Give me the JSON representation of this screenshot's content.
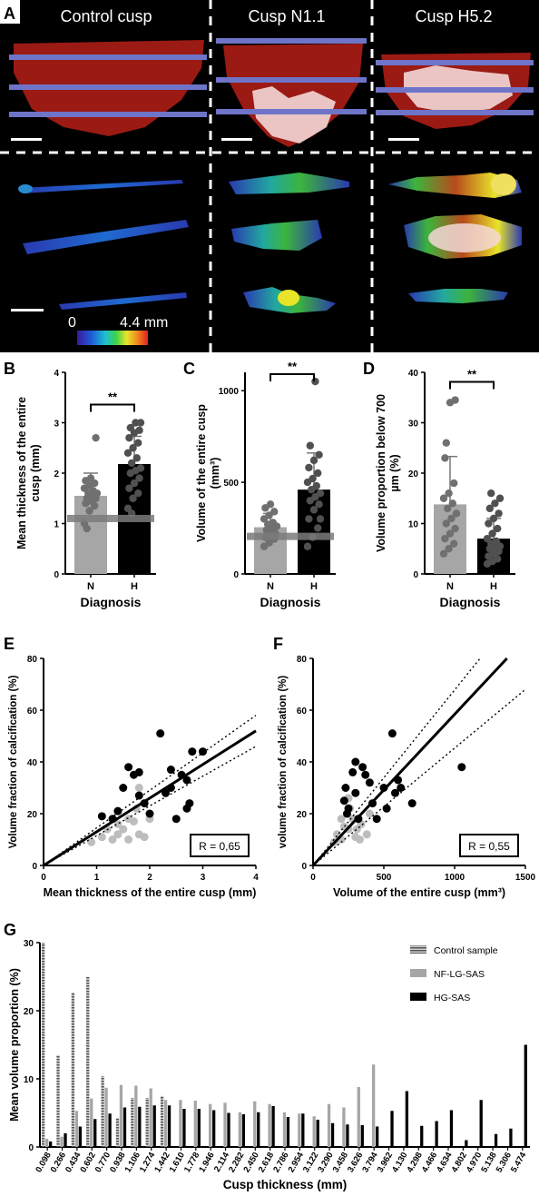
{
  "panelA": {
    "letter": "A",
    "titles": [
      "Control cusp",
      "Cusp N1.1",
      "Cusp H5.2"
    ],
    "colorbar_min": "0",
    "colorbar_max": "4.4 mm"
  },
  "colors": {
    "gray": "#a6a6a6",
    "black": "#000000",
    "tissue": "#9b1a14",
    "calc": "#f3d8d6",
    "band": "#6e74c8"
  },
  "chart_data": [
    {
      "id": "B",
      "type": "bar",
      "letter": "B",
      "categories": [
        "N",
        "H"
      ],
      "values": [
        1.55,
        2.18
      ],
      "errors": [
        0.45,
        0.55
      ],
      "xlabel": "Diagnosis",
      "ylabel": "Mean thickness of the entire cusp (mm)",
      "ylim": [
        0,
        4
      ],
      "yticks": [
        "0",
        "1",
        "2",
        "3",
        "4"
      ],
      "ytick_values": [
        0,
        1,
        2,
        3,
        4
      ],
      "reference_line": 1.1,
      "significance": "**",
      "points": [
        [
          1.0,
          1.25,
          1.35,
          1.4,
          1.45,
          1.5,
          1.5,
          1.55,
          1.6,
          1.6,
          1.65,
          1.7,
          1.75,
          1.8,
          1.85,
          1.9,
          2.7,
          0.9
        ],
        [
          1.3,
          1.5,
          1.6,
          1.7,
          1.8,
          1.9,
          2.0,
          2.05,
          2.1,
          2.2,
          2.3,
          2.4,
          2.5,
          2.6,
          2.7,
          2.8,
          2.85,
          2.9,
          3.0,
          3.0,
          1.2
        ]
      ]
    },
    {
      "id": "C",
      "type": "bar",
      "letter": "C",
      "categories": [
        "N",
        "H"
      ],
      "values": [
        255,
        460
      ],
      "errors": [
        75,
        200
      ],
      "xlabel": "Diagnosis",
      "ylabel": "Volume of the entire cusp (mm³)",
      "ylim": [
        0,
        1100
      ],
      "yticks": [
        "0",
        "500",
        "1000"
      ],
      "ytick_values": [
        0,
        500,
        1000
      ],
      "reference_line": 205,
      "significance": "**",
      "points": [
        [
          150,
          170,
          190,
          200,
          210,
          220,
          240,
          250,
          260,
          270,
          280,
          300,
          320,
          340,
          360,
          380
        ],
        [
          150,
          200,
          250,
          300,
          350,
          380,
          400,
          420,
          440,
          460,
          480,
          500,
          520,
          550,
          580,
          620,
          650,
          700,
          1050,
          300
        ]
      ]
    },
    {
      "id": "D",
      "type": "bar",
      "letter": "D",
      "categories": [
        "N",
        "H"
      ],
      "values": [
        13.8,
        7.0
      ],
      "errors": [
        9.5,
        4.0
      ],
      "xlabel": "Diagnosis",
      "ylabel": "Volume proportion below 700 µm (%)",
      "ylim": [
        0,
        40
      ],
      "yticks": [
        "0",
        "10",
        "20",
        "30",
        "40"
      ],
      "ytick_values": [
        0,
        10,
        20,
        30,
        40
      ],
      "significance": "**",
      "points": [
        [
          4,
          5,
          6,
          7,
          8,
          9,
          10,
          11,
          12,
          13,
          14,
          15,
          16,
          18,
          23,
          34,
          34.5,
          26
        ],
        [
          2,
          2.5,
          3,
          3.5,
          4,
          4.5,
          5,
          5,
          5.5,
          6,
          6.5,
          7,
          8,
          9,
          10,
          11,
          12,
          13,
          14,
          15,
          16
        ]
      ]
    },
    {
      "id": "E",
      "type": "scatter",
      "letter": "E",
      "xlabel": "Mean thickness of the entire cusp (mm)",
      "ylabel": "Volume fraction of calcification (%)",
      "xlim": [
        0,
        4
      ],
      "ylim": [
        0,
        80
      ],
      "xticks": [
        "0",
        "1",
        "2",
        "3",
        "4"
      ],
      "xtick_values": [
        0,
        1,
        2,
        3,
        4
      ],
      "yticks": [
        "0",
        "20",
        "40",
        "60",
        "80"
      ],
      "ytick_values": [
        0,
        20,
        40,
        60,
        80
      ],
      "annotation": "R = 0,65",
      "fit": [
        [
          0,
          0
        ],
        [
          4,
          52
        ]
      ],
      "ci_low": [
        [
          0,
          0
        ],
        [
          4,
          46
        ]
      ],
      "ci_high": [
        [
          0,
          0
        ],
        [
          4,
          58
        ]
      ],
      "series": [
        {
          "color": "gray",
          "points": [
            [
              0.9,
              9
            ],
            [
              1.1,
              11
            ],
            [
              1.2,
              14
            ],
            [
              1.3,
              10
            ],
            [
              1.4,
              12
            ],
            [
              1.5,
              14
            ],
            [
              1.6,
              10
            ],
            [
              1.8,
              12
            ],
            [
              1.9,
              11
            ],
            [
              1.7,
              17
            ],
            [
              1.8,
              30
            ],
            [
              1.75,
              22
            ],
            [
              1.6,
              18
            ],
            [
              2.0,
              18
            ],
            [
              1.4,
              16
            ]
          ]
        },
        {
          "color": "black",
          "points": [
            [
              1.1,
              19
            ],
            [
              1.3,
              18
            ],
            [
              1.4,
              21
            ],
            [
              1.5,
              30
            ],
            [
              1.6,
              38
            ],
            [
              1.7,
              35
            ],
            [
              1.8,
              36
            ],
            [
              1.8,
              27
            ],
            [
              1.9,
              24
            ],
            [
              2.0,
              20
            ],
            [
              2.2,
              51
            ],
            [
              2.3,
              28
            ],
            [
              2.4,
              37
            ],
            [
              2.5,
              18
            ],
            [
              2.6,
              35
            ],
            [
              2.7,
              33
            ],
            [
              2.7,
              22
            ],
            [
              2.75,
              24
            ],
            [
              2.8,
              44
            ],
            [
              3.0,
              44
            ],
            [
              2.4,
              30
            ]
          ]
        }
      ]
    },
    {
      "id": "F",
      "type": "scatter",
      "letter": "F",
      "xlabel": "Volume of the entire cusp (mm³)",
      "ylabel": "volume fraction of calcification (%)",
      "xlim": [
        0,
        1500
      ],
      "ylim": [
        0,
        80
      ],
      "xticks": [
        "0",
        "500",
        "1000",
        "1500"
      ],
      "xtick_values": [
        0,
        500,
        1000,
        1500
      ],
      "yticks": [
        "0",
        "20",
        "40",
        "60",
        "80"
      ],
      "ytick_values": [
        0,
        20,
        40,
        60,
        80
      ],
      "annotation": "R = 0,55",
      "fit": [
        [
          0,
          0
        ],
        [
          1370,
          80
        ]
      ],
      "ci_low": [
        [
          0,
          0
        ],
        [
          1500,
          68
        ]
      ],
      "ci_high": [
        [
          0,
          0
        ],
        [
          1180,
          80
        ]
      ],
      "series": [
        {
          "color": "gray",
          "points": [
            [
              150,
              9
            ],
            [
              170,
              12
            ],
            [
              200,
              10
            ],
            [
              220,
              15
            ],
            [
              250,
              26
            ],
            [
              260,
              22
            ],
            [
              280,
              18
            ],
            [
              300,
              11
            ],
            [
              310,
              14
            ],
            [
              340,
              16
            ],
            [
              380,
              12
            ],
            [
              400,
              20
            ],
            [
              250,
              14
            ],
            [
              200,
              18
            ],
            [
              330,
              10
            ]
          ]
        },
        {
          "color": "black",
          "points": [
            [
              220,
              25
            ],
            [
              230,
              30
            ],
            [
              250,
              22
            ],
            [
              280,
              36
            ],
            [
              300,
              28
            ],
            [
              320,
              18
            ],
            [
              350,
              38
            ],
            [
              370,
              35
            ],
            [
              400,
              32
            ],
            [
              420,
              24
            ],
            [
              450,
              18
            ],
            [
              500,
              30
            ],
            [
              520,
              22
            ],
            [
              560,
              51
            ],
            [
              600,
              33
            ],
            [
              620,
              30
            ],
            [
              700,
              24
            ],
            [
              1050,
              38
            ],
            [
              240,
              20
            ],
            [
              300,
              40
            ],
            [
              580,
              28
            ]
          ]
        }
      ]
    },
    {
      "id": "G",
      "type": "bar",
      "letter": "G",
      "xlabel": "Cusp thickness (mm)",
      "ylabel": "Mean volume proportion (%)",
      "ylim": [
        0,
        30
      ],
      "yticks": [
        "0",
        "10",
        "20",
        "30"
      ],
      "ytick_values": [
        0,
        10,
        20,
        30
      ],
      "categories": [
        "0.098",
        "0.266",
        "0.434",
        "0.602",
        "0.770",
        "0.938",
        "1.106",
        "1.274",
        "1.442",
        "1.610",
        "1.778",
        "1.946",
        "2.114",
        "2.282",
        "2.450",
        "2.618",
        "2.786",
        "2.954",
        "3.122",
        "3.290",
        "3.458",
        "3.626",
        "3.794",
        "3.962",
        "4.130",
        "4.298",
        "4.466",
        "4.634",
        "4.802",
        "4.970",
        "5.138",
        "5.306",
        "5.474"
      ],
      "series": [
        {
          "name": "Control sample",
          "style": "striped",
          "values": [
            30,
            13.5,
            22.7,
            25,
            10.4,
            4.3,
            7.2,
            7.2,
            7.5,
            0,
            0,
            0,
            0,
            0,
            0,
            0,
            0,
            0,
            0,
            0,
            0,
            0,
            0,
            0,
            0,
            0,
            0,
            0,
            0,
            0,
            0,
            0,
            0
          ]
        },
        {
          "name": "NF-LG-SAS",
          "style": "gray",
          "values": [
            1.2,
            1.5,
            5.3,
            7.1,
            8.7,
            9.1,
            9.0,
            8.6,
            6.9,
            6.9,
            6.8,
            6.3,
            6.5,
            5.1,
            6.7,
            6.3,
            5.1,
            4.9,
            4.5,
            6.3,
            5.8,
            8.8,
            12.1,
            0,
            0,
            0,
            0,
            0,
            0,
            0,
            0,
            0,
            0
          ]
        },
        {
          "name": "HG-SAS",
          "style": "black",
          "values": [
            0.8,
            2.0,
            3.0,
            4.1,
            4.9,
            5.8,
            5.9,
            6.1,
            6.1,
            5.6,
            5.6,
            5.4,
            5.0,
            4.8,
            5.1,
            6.0,
            4.4,
            4.9,
            4.0,
            3.5,
            3.3,
            3.2,
            3.0,
            5.3,
            8.2,
            3.1,
            3.8,
            5.4,
            1.0,
            6.9,
            1.9,
            2.7,
            15.0
          ]
        }
      ]
    }
  ]
}
